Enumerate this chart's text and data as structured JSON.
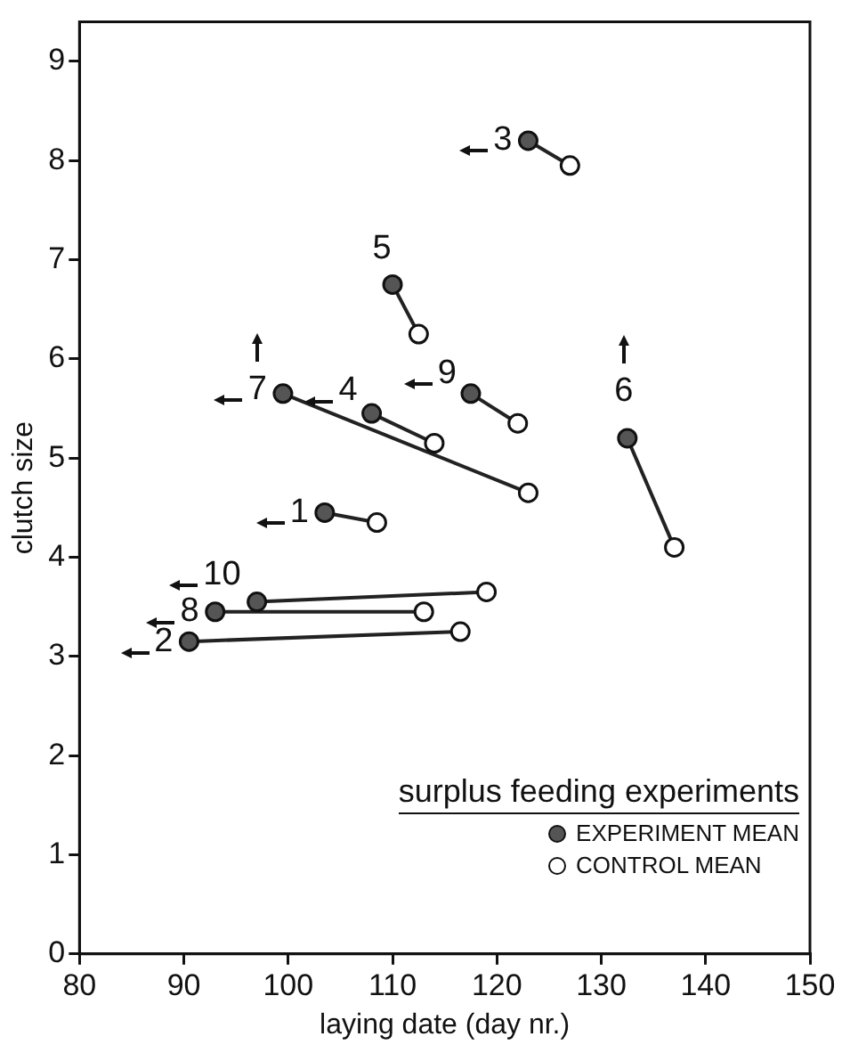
{
  "chart_data": {
    "type": "scatter",
    "xlabel": "laying date (day nr.)",
    "ylabel": "clutch size",
    "legend_title": "surplus feeding experiments",
    "legend": "bottom right",
    "marker": "circle",
    "grid": false,
    "xlim": [
      80,
      150
    ],
    "ylim": [
      0,
      9.4
    ],
    "xticks": [
      80,
      90,
      100,
      110,
      120,
      130,
      140,
      150
    ],
    "yticks": [
      0,
      1,
      2,
      3,
      4,
      5,
      6,
      7,
      8,
      9
    ],
    "series": [
      {
        "type": "line",
        "marker": "none",
        "color": "#222222",
        "x": [
          103.5,
          108.5
        ],
        "values": [
          4.45,
          4.35
        ]
      },
      {
        "type": "line",
        "marker": "none",
        "color": "#222222",
        "x": [
          90.5,
          116.5
        ],
        "values": [
          3.15,
          3.25
        ]
      },
      {
        "type": "line",
        "marker": "none",
        "color": "#222222",
        "x": [
          123,
          127
        ],
        "values": [
          8.2,
          7.95
        ]
      },
      {
        "type": "line",
        "marker": "none",
        "color": "#222222",
        "x": [
          108,
          114
        ],
        "values": [
          5.45,
          5.15
        ]
      },
      {
        "type": "line",
        "marker": "none",
        "color": "#222222",
        "x": [
          110,
          112.5
        ],
        "values": [
          6.75,
          6.25
        ]
      },
      {
        "type": "line",
        "marker": "none",
        "color": "#222222",
        "x": [
          132.5,
          137
        ],
        "values": [
          5.2,
          4.1
        ]
      },
      {
        "type": "line",
        "marker": "none",
        "color": "#222222",
        "x": [
          99.5,
          123
        ],
        "values": [
          5.65,
          4.65
        ]
      },
      {
        "type": "line",
        "marker": "none",
        "color": "#222222",
        "x": [
          93,
          113
        ],
        "values": [
          3.45,
          3.45
        ]
      },
      {
        "type": "line",
        "marker": "none",
        "color": "#222222",
        "x": [
          117.5,
          122
        ],
        "values": [
          5.65,
          5.35
        ]
      },
      {
        "type": "line",
        "marker": "none",
        "color": "#222222",
        "x": [
          97,
          119
        ],
        "values": [
          3.55,
          3.65
        ]
      },
      {
        "name": "EXPERIMENT MEAN",
        "color": "#555555",
        "x": [
          103.5,
          90.5,
          123,
          108,
          110,
          132.5,
          99.5,
          93,
          117.5,
          97
        ],
        "values": [
          4.45,
          3.15,
          8.2,
          5.45,
          6.75,
          5.2,
          5.65,
          3.45,
          5.65,
          3.55
        ]
      },
      {
        "name": "CONTROL MEAN",
        "color": "#ffffff",
        "x": [
          108.5,
          116.5,
          127,
          114,
          112.5,
          137,
          123,
          113,
          122,
          119
        ],
        "values": [
          4.35,
          3.25,
          7.95,
          5.15,
          6.25,
          4.1,
          4.65,
          3.45,
          5.35,
          3.65
        ]
      }
    ],
    "annotations": [
      {
        "text": "1",
        "x": 103.5,
        "y": 4.45
      },
      {
        "text": "2",
        "x": 90.5,
        "y": 3.15
      },
      {
        "text": "3",
        "x": 123,
        "y": 8.2
      },
      {
        "text": "4",
        "x": 108,
        "y": 5.45
      },
      {
        "text": "5",
        "x": 110,
        "y": 6.75
      },
      {
        "text": "6",
        "x": 132.5,
        "y": 5.2
      },
      {
        "text": "7",
        "x": 99.5,
        "y": 5.65
      },
      {
        "text": "8",
        "x": 93,
        "y": 3.45
      },
      {
        "text": "9",
        "x": 117.5,
        "y": 5.65
      },
      {
        "text": "10",
        "x": 97,
        "y": 3.55
      }
    ]
  }
}
